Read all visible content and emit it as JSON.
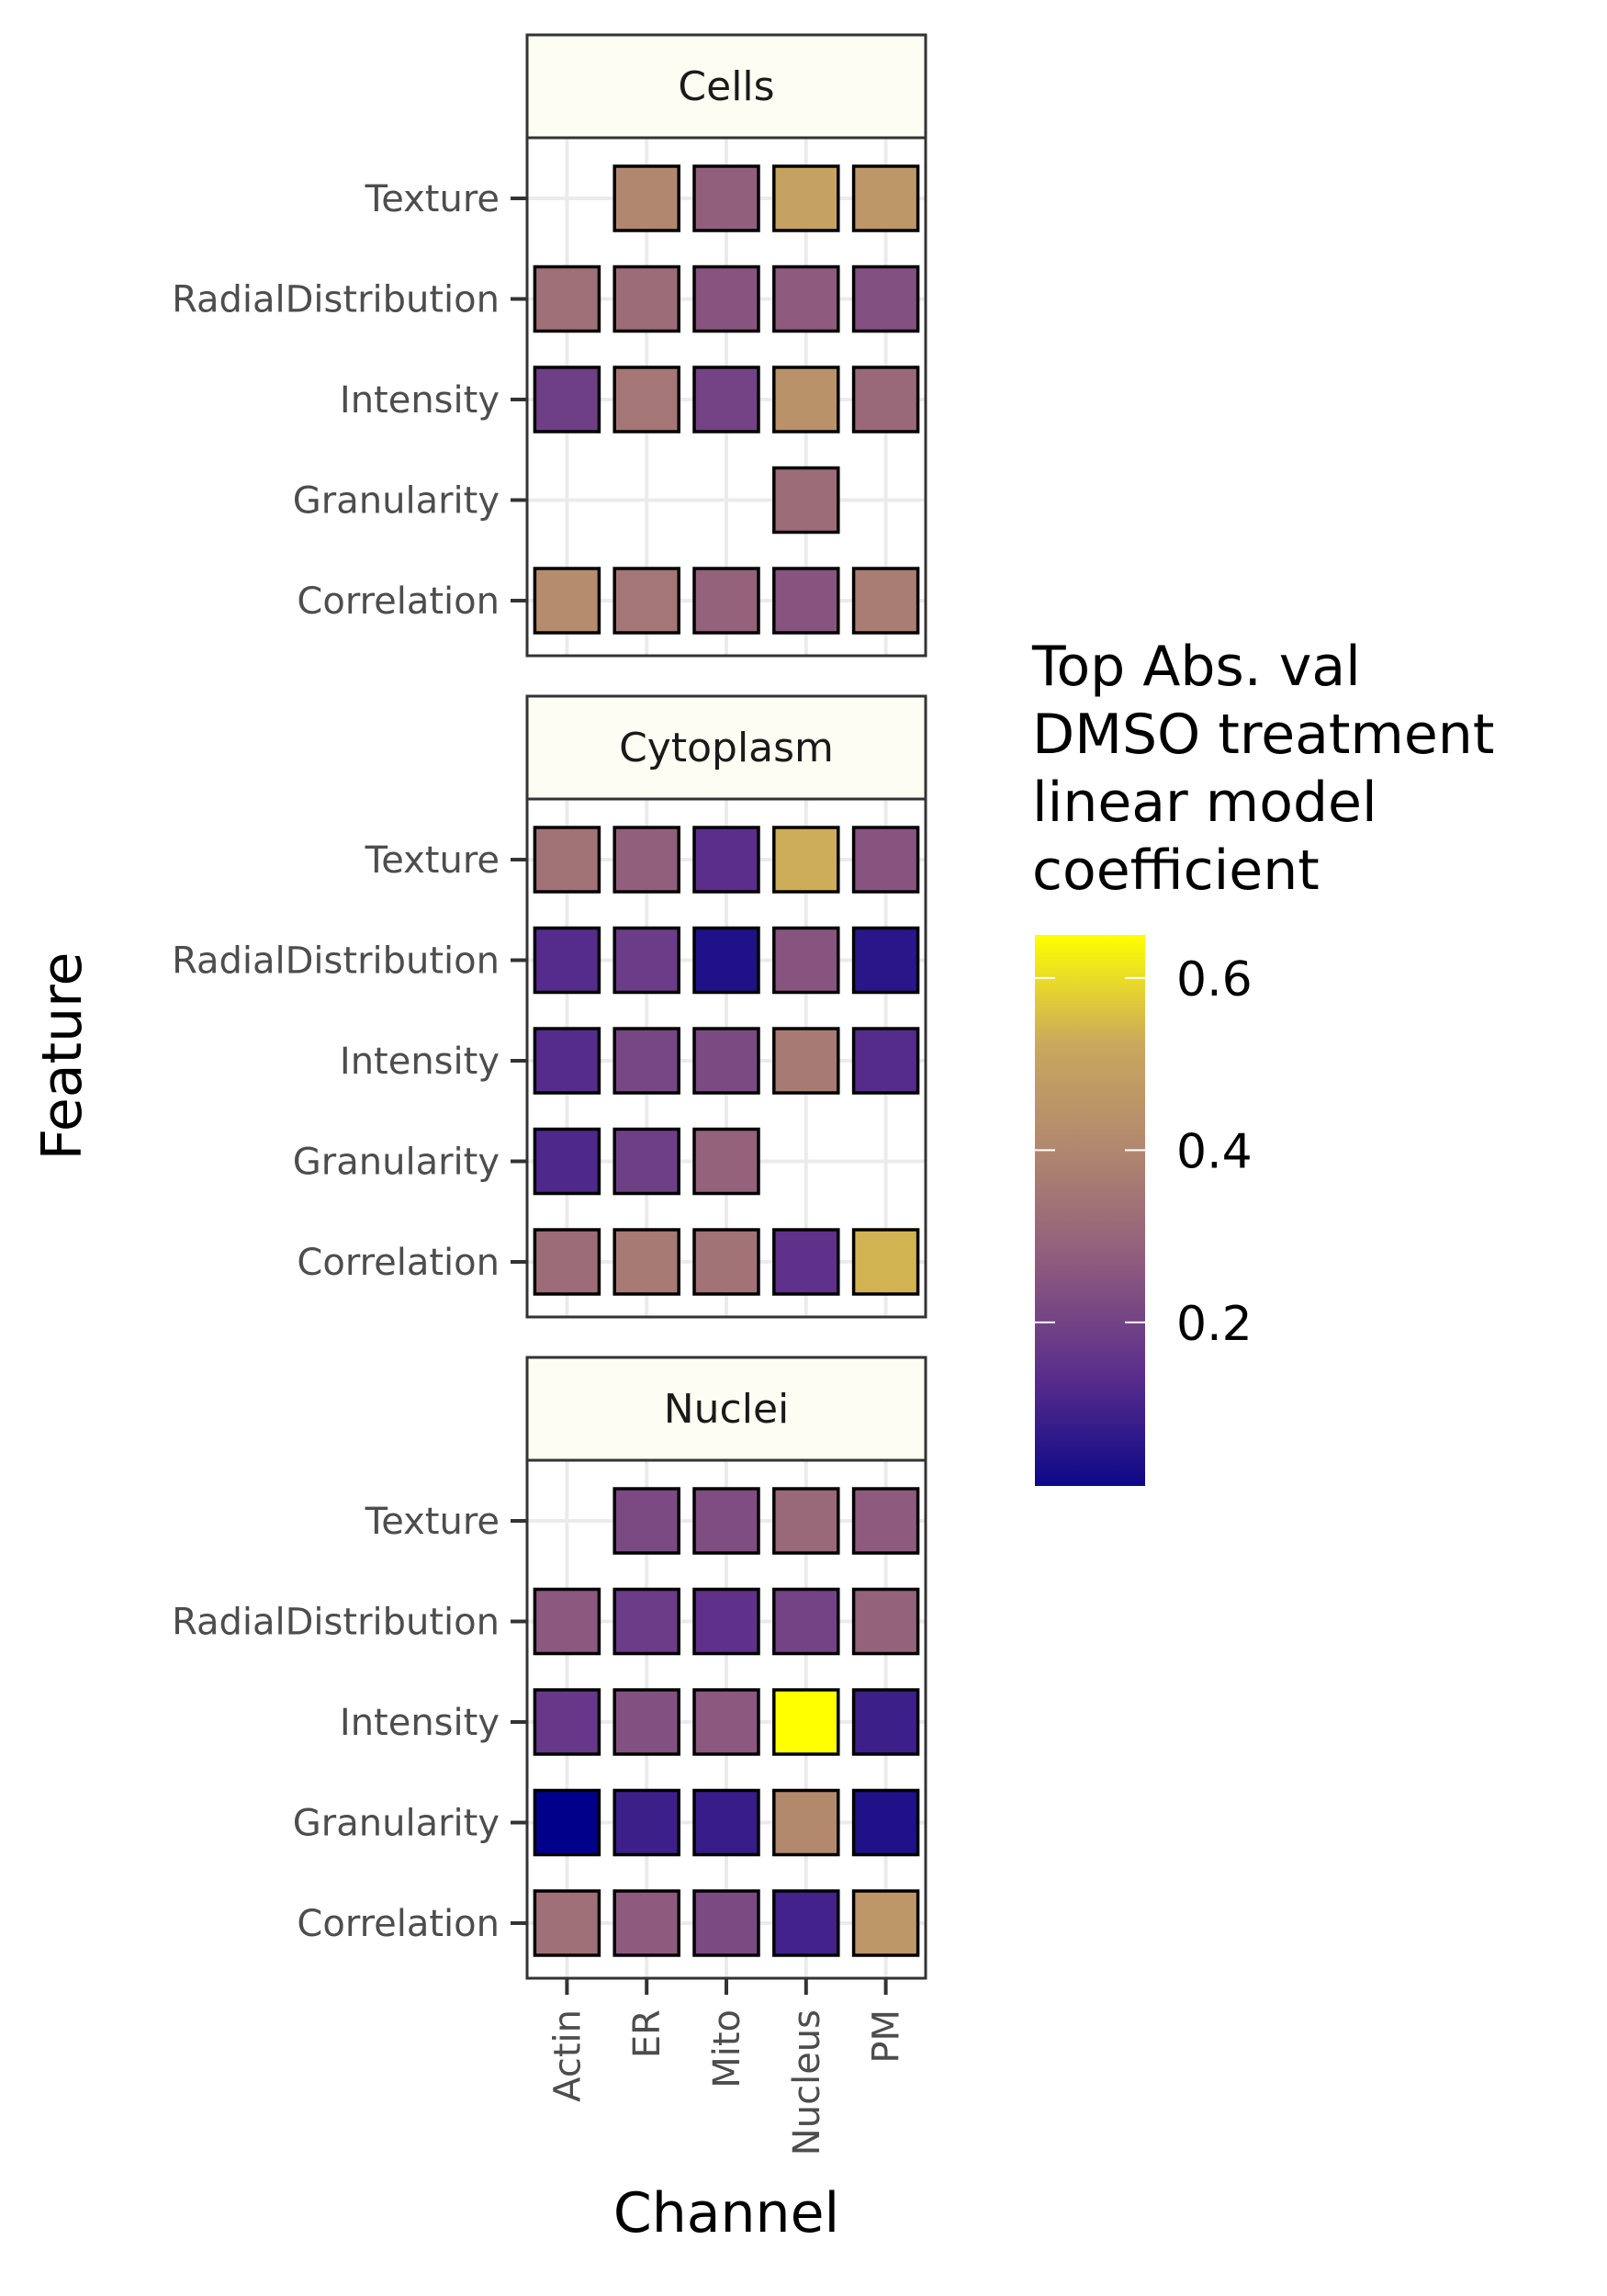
{
  "chart_data": {
    "type": "heatmap",
    "xlabel": "Channel",
    "ylabel": "Feature",
    "x_categories": [
      "Actin",
      "ER",
      "Mito",
      "Nucleus",
      "PM"
    ],
    "y_categories": [
      "Correlation",
      "Granularity",
      "Intensity",
      "RadialDistribution",
      "Texture"
    ],
    "grid": true,
    "legend": {
      "title": [
        "Top Abs. val",
        "DMSO treatment",
        "linear model",
        "coefficient"
      ],
      "min": 0.01,
      "max": 0.65,
      "ticks": [
        0.2,
        0.4,
        0.6
      ],
      "tick_labels": [
        "0.2",
        "0.4",
        "0.6"
      ],
      "placement": "right",
      "colors": [
        "#0d0887",
        "#5a2d8c",
        "#8d5a7e",
        "#b08570",
        "#c9a85e",
        "#ffff00"
      ],
      "low_color": "#00008b",
      "high_color": "#ffff00"
    },
    "panels": [
      {
        "name": "Cells",
        "rows": {
          "Texture": [
            null,
            0.4,
            0.28,
            0.5,
            0.46
          ],
          "RadialDistribution": [
            0.33,
            0.32,
            0.25,
            0.27,
            0.24
          ],
          "Intensity": [
            0.19,
            0.35,
            0.2,
            0.44,
            0.31
          ],
          "Granularity": [
            null,
            null,
            null,
            0.32,
            null
          ],
          "Correlation": [
            0.42,
            0.35,
            0.29,
            0.25,
            0.37
          ]
        }
      },
      {
        "name": "Cytoplasm",
        "rows": {
          "Texture": [
            0.34,
            0.28,
            0.14,
            0.53,
            0.25
          ],
          "RadialDistribution": [
            0.13,
            0.18,
            0.04,
            0.25,
            0.06
          ],
          "Intensity": [
            0.13,
            0.21,
            0.22,
            0.36,
            0.13
          ],
          "Granularity": [
            0.12,
            0.19,
            0.29,
            null,
            null
          ],
          "Correlation": [
            0.32,
            0.36,
            0.34,
            0.15,
            0.54
          ]
        }
      },
      {
        "name": "Nuclei",
        "rows": {
          "Texture": [
            null,
            0.22,
            0.23,
            0.31,
            0.27
          ],
          "RadialDistribution": [
            0.26,
            0.18,
            0.15,
            0.2,
            0.29
          ],
          "Intensity": [
            0.17,
            0.24,
            0.26,
            0.65,
            0.09
          ],
          "Granularity": [
            0.01,
            0.09,
            0.08,
            0.41,
            0.04
          ],
          "Correlation": [
            0.33,
            0.27,
            0.22,
            0.1,
            0.46
          ]
        }
      }
    ]
  }
}
